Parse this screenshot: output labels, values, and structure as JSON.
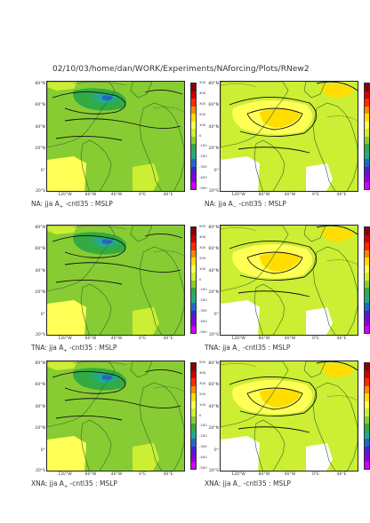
{
  "title": "02/10/03/home/dan/WORK/Experiments/NAforcing/Plots/RNew2",
  "lat_labels": [
    "80°N",
    "60°N",
    "40°N",
    "20°N",
    "0°",
    "20°S"
  ],
  "lon_labels": [
    "120°W",
    "80°W",
    "40°W",
    "0°E",
    "40°E"
  ],
  "colorbar": {
    "levels": [
      "500",
      "400",
      "300",
      "200",
      "100",
      "0",
      "-100",
      "-200",
      "-300",
      "-400",
      "-500"
    ],
    "colors": [
      "#8b0000",
      "#cc0000",
      "#ff2a00",
      "#ff8800",
      "#ffdd00",
      "#ffff55",
      "#ccee33",
      "#88cc33",
      "#33aa44",
      "#22aa88",
      "#2266cc",
      "#4422cc",
      "#8800dd",
      "#cc00ff"
    ]
  },
  "panels": [
    {
      "region": "NA",
      "field": "jja A",
      "subscript": "+",
      "rest": " -cntl35 : MSLP",
      "dominant": "negative"
    },
    {
      "region": "NA",
      "field": "jja A",
      "subscript": "−",
      "rest": " -cntl35 : MSLP",
      "dominant": "positive"
    },
    {
      "region": "TNA",
      "field": "jja A",
      "subscript": "+",
      "rest": " -cntl35 : MSLP",
      "dominant": "negative"
    },
    {
      "region": "TNA",
      "field": "jja A",
      "subscript": "−",
      "rest": " -cntl35 : MSLP",
      "dominant": "positive"
    },
    {
      "region": "XNA",
      "field": "jja A",
      "subscript": "+",
      "rest": " -cntl35 : MSLP",
      "dominant": "negative"
    },
    {
      "region": "XNA",
      "field": "jja A",
      "subscript": "−",
      "rest": " -cntl35 : MSLP",
      "dominant": "positive"
    }
  ]
}
